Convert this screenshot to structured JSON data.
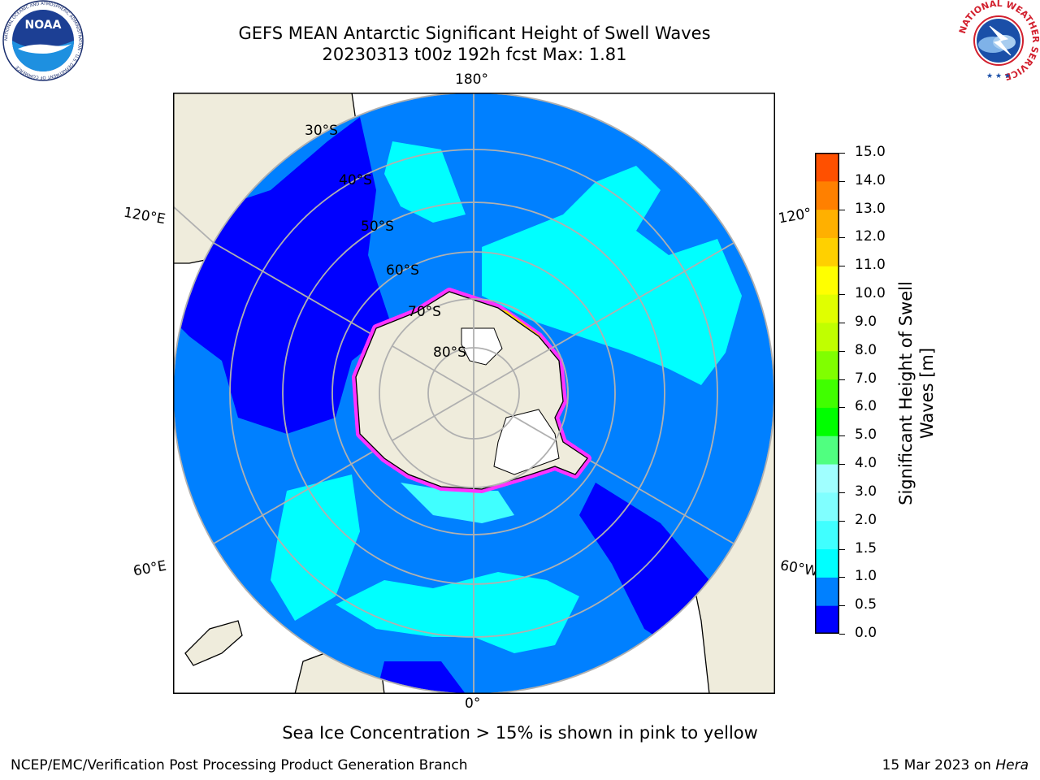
{
  "title_line1": "GEFS MEAN Antarctic Significant Height of Swell Waves",
  "title_line2": "20230313 t00z 192h fcst   Max: 1.81",
  "map": {
    "projection": "south-polar-stereographic",
    "longitude_labels": {
      "top": "180°",
      "bottom": "0°",
      "upper_left": "120°E",
      "upper_right": "120°",
      "lower_left": "60°E",
      "lower_right": "60°W"
    },
    "latitude_labels": [
      "30°S",
      "40°S",
      "50°S",
      "60°S",
      "70°S",
      "80°S"
    ],
    "colors": {
      "ocean_low": "#0000ff",
      "ocean_mid": "#0080ff",
      "ocean_high": "#00ffff",
      "ocean_higher": "#66ffff",
      "land": "#efecdc",
      "sea_ice": "#ffffff",
      "ice_edge": "#ff33ff",
      "ice_edge_high": "#ffd000",
      "grid": "#b0b0b0"
    }
  },
  "colorbar": {
    "label": "Significant Height of Swell Waves [m]",
    "label_line1": "Significant Height of Swell",
    "label_line2": "Waves [m]",
    "ticks": [
      "15.0",
      "14.0",
      "13.0",
      "12.0",
      "11.0",
      "10.0",
      "9.0",
      "8.0",
      "7.0",
      "6.0",
      "5.0",
      "4.0",
      "3.0",
      "2.0",
      "1.5",
      "1.0",
      "0.5",
      "0.0"
    ],
    "colors_bottom_to_top": [
      "#0000ff",
      "#0080ff",
      "#00ffff",
      "#40ffff",
      "#80ffff",
      "#a0ffff",
      "#50ff80",
      "#00ff00",
      "#40ff00",
      "#80ff00",
      "#c0ff00",
      "#e0ff00",
      "#ffff00",
      "#ffd000",
      "#ffb000",
      "#ff8000",
      "#ff5000",
      "#ff2000",
      "#ff0000"
    ]
  },
  "footnote": "Sea Ice Concentration > 15% is shown in pink to yellow",
  "credit_left": "NCEP/EMC/Verification Post Processing Product Generation Branch",
  "credit_right_date": "15 Mar 2023 on",
  "credit_right_machine": "Hera",
  "logos": {
    "noaa_text": "NOAA",
    "noaa_ring_text": "NATIONAL OCEANIC AND ATMOSPHERIC ADMINISTRATION · U.S. DEPARTMENT OF COMMERCE",
    "nws_ring_text": "NATIONAL WEATHER SERVICE"
  }
}
